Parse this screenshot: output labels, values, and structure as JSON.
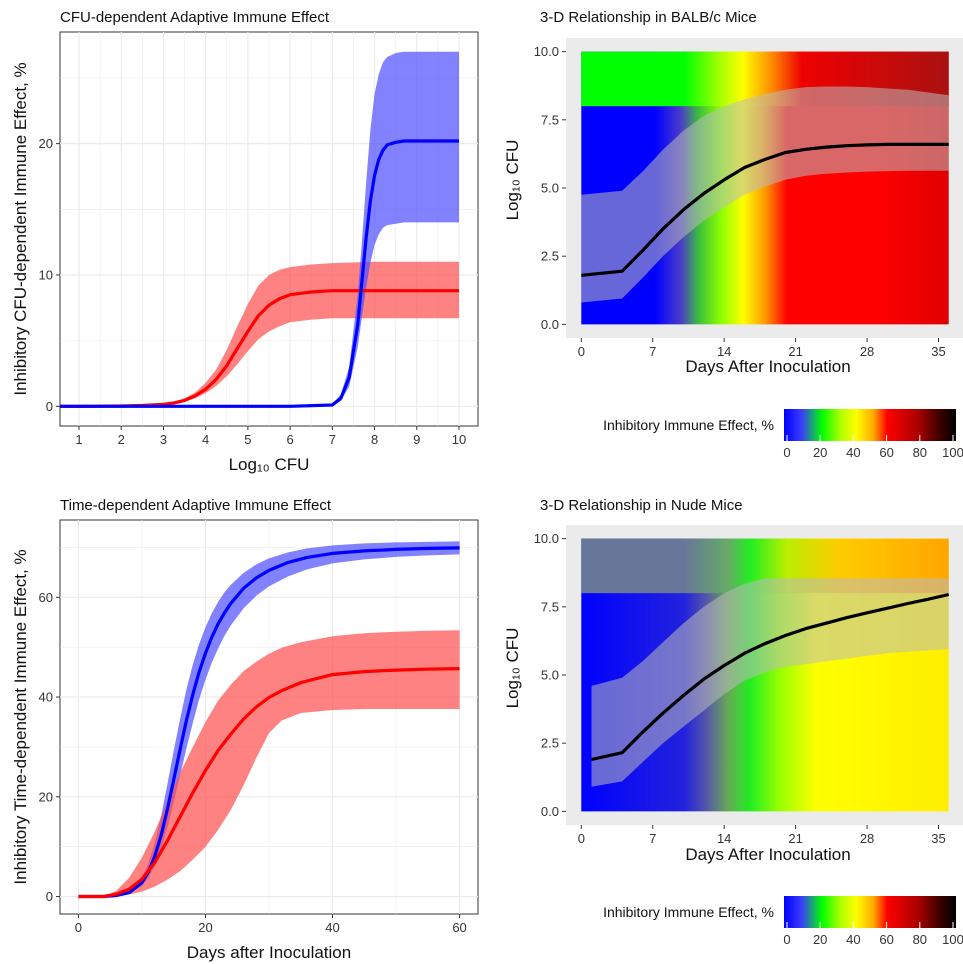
{
  "chart_data": [
    {
      "type": "line",
      "title": "CFU-dependent Adaptive Immune Effect",
      "xlabel": "Log₁₀ CFU",
      "ylabel": "Inhibitory CFU-dependent Immune Effect, %",
      "xlim": [
        0.55,
        10.45
      ],
      "ylim": [
        -1.5,
        28.5
      ],
      "xticks": [
        1,
        2,
        3,
        4,
        5,
        6,
        7,
        8,
        9,
        10
      ],
      "yticks": [
        0,
        10,
        20
      ],
      "grid": true,
      "series": [
        {
          "color": "#ff0000",
          "band_color": "#ff4d4d",
          "x": [
            0.55,
            1,
            2,
            2.5,
            3,
            3.25,
            3.5,
            3.75,
            4,
            4.25,
            4.5,
            4.75,
            5,
            5.25,
            5.5,
            5.75,
            6,
            6.5,
            7,
            8,
            9,
            10
          ],
          "y": [
            0,
            0,
            0.02,
            0.06,
            0.15,
            0.26,
            0.45,
            0.8,
            1.3,
            2.05,
            3.1,
            4.4,
            5.7,
            6.9,
            7.7,
            8.2,
            8.5,
            8.7,
            8.8,
            8.8,
            8.8,
            8.8
          ],
          "lower": [
            0,
            0,
            0.02,
            0.05,
            0.12,
            0.2,
            0.35,
            0.6,
            1.0,
            1.55,
            2.3,
            3.2,
            4.2,
            5.1,
            5.7,
            6.1,
            6.4,
            6.6,
            6.7,
            6.7,
            6.7,
            6.7
          ],
          "upper": [
            0,
            0,
            0.03,
            0.08,
            0.2,
            0.35,
            0.6,
            1.05,
            1.8,
            2.8,
            4.3,
            6.1,
            7.8,
            9.2,
            10.0,
            10.4,
            10.6,
            10.8,
            10.9,
            11.0,
            11.0,
            11.0
          ]
        },
        {
          "color": "#0000ff",
          "band_color": "#4d4dff",
          "x": [
            0.55,
            2,
            4,
            6,
            7,
            7.2,
            7.4,
            7.6,
            7.7,
            7.8,
            7.9,
            8.0,
            8.1,
            8.2,
            8.3,
            8.5,
            8.7,
            9,
            10
          ],
          "y": [
            0,
            0,
            0,
            0,
            0.1,
            0.6,
            2.2,
            6.2,
            9.5,
            12.8,
            15.6,
            17.6,
            18.8,
            19.5,
            19.9,
            20.1,
            20.2,
            20.2,
            20.2
          ],
          "lower": [
            0,
            0,
            0,
            0,
            0.05,
            0.4,
            1.5,
            4.5,
            6.8,
            9.0,
            10.9,
            12.3,
            13.1,
            13.6,
            13.8,
            13.9,
            14.0,
            14.0,
            14.0
          ],
          "upper": [
            0,
            0,
            0,
            0,
            0.2,
            0.9,
            3.0,
            8.5,
            12.5,
            17.0,
            21.0,
            23.8,
            25.3,
            26.2,
            26.6,
            26.9,
            27.0,
            27.0,
            27.0
          ]
        }
      ]
    },
    {
      "type": "heatmap",
      "title": "3-D Relationship in BALB/c Mice",
      "xlabel": "Days After Inoculation",
      "ylabel": "Log₁₀ CFU",
      "xlim": [
        -1.5,
        37.5
      ],
      "ylim": [
        -0.5,
        10.5
      ],
      "xticks": [
        0,
        7,
        14,
        21,
        28,
        35
      ],
      "yticks": [
        "0.0",
        "2.5",
        "5.0",
        "7.5",
        "10.0"
      ],
      "colorbar": {
        "label": "Inhibitory Immune Effect, %",
        "ticks": [
          0,
          20,
          40,
          60,
          80,
          100
        ]
      },
      "curve": {
        "x": [
          0,
          4,
          6,
          8,
          10,
          12,
          14,
          16,
          18,
          20,
          22,
          24,
          26,
          28,
          30,
          32,
          34,
          36
        ],
        "y": [
          1.8,
          1.95,
          2.7,
          3.5,
          4.2,
          4.8,
          5.3,
          5.75,
          6.05,
          6.3,
          6.42,
          6.5,
          6.55,
          6.58,
          6.6,
          6.6,
          6.6,
          6.6
        ],
        "lower": [
          0.8,
          0.95,
          1.7,
          2.5,
          3.2,
          3.8,
          4.3,
          4.75,
          5.05,
          5.3,
          5.45,
          5.52,
          5.57,
          5.6,
          5.62,
          5.63,
          5.63,
          5.63
        ],
        "upper": [
          4.75,
          4.9,
          5.6,
          6.4,
          7.1,
          7.65,
          8.0,
          8.25,
          8.45,
          8.6,
          8.7,
          8.72,
          8.72,
          8.7,
          8.65,
          8.6,
          8.5,
          8.4
        ]
      }
    },
    {
      "type": "line",
      "title": "Time-dependent Adaptive Immune Effect",
      "xlabel": "Days after Inoculation",
      "ylabel": "Inhibitory Time-dependent Immune Effect, %",
      "xlim": [
        -2.9,
        62.9
      ],
      "ylim": [
        -3.5,
        75.5
      ],
      "xticks": [
        0,
        20,
        40,
        60
      ],
      "yticks": [
        0,
        20,
        40,
        60
      ],
      "grid": true,
      "series": [
        {
          "color": "#0000ff",
          "band_color": "#4d4dff",
          "x": [
            0,
            4,
            6,
            8,
            10,
            11,
            12,
            13,
            14,
            15,
            16,
            17,
            18,
            19,
            20,
            21,
            22,
            23,
            24,
            26,
            28,
            30,
            33,
            36,
            40,
            45,
            50,
            55,
            60
          ],
          "y": [
            0,
            0,
            0.2,
            0.8,
            2.8,
            4.9,
            8.0,
            12.2,
            17.5,
            23.4,
            29.5,
            35.3,
            40.5,
            45.0,
            48.8,
            52.0,
            54.7,
            56.9,
            58.8,
            61.8,
            63.9,
            65.4,
            67.0,
            68.0,
            68.8,
            69.3,
            69.6,
            69.8,
            69.9
          ],
          "lower": [
            0,
            0,
            0.15,
            0.6,
            2.1,
            3.7,
            6.1,
            9.5,
            13.8,
            18.8,
            24.3,
            29.7,
            34.8,
            39.5,
            43.5,
            46.9,
            49.8,
            52.3,
            54.4,
            57.8,
            60.3,
            62.2,
            64.2,
            65.6,
            66.8,
            67.6,
            68.1,
            68.4,
            68.6
          ],
          "upper": [
            0,
            0,
            0.3,
            1.2,
            3.8,
            6.6,
            10.7,
            16.0,
            22.5,
            29.2,
            35.6,
            41.5,
            46.5,
            50.6,
            54.0,
            56.8,
            59.1,
            61.0,
            62.5,
            64.9,
            66.6,
            67.8,
            69.0,
            69.8,
            70.4,
            70.8,
            71.0,
            71.1,
            71.2
          ]
        },
        {
          "color": "#ff0000",
          "band_color": "#ff4d4d",
          "x": [
            0,
            4,
            6,
            8,
            10,
            12,
            14,
            16,
            18,
            20,
            22,
            24,
            26,
            28,
            30,
            32,
            35,
            40,
            45,
            50,
            55,
            60
          ],
          "y": [
            0,
            0,
            0.5,
            1.5,
            3.5,
            6.8,
            11.2,
            16.0,
            20.8,
            25.3,
            29.3,
            32.6,
            35.6,
            38.0,
            39.9,
            41.3,
            42.9,
            44.5,
            45.1,
            45.4,
            45.6,
            45.7
          ],
          "lower": [
            0,
            0,
            0.1,
            0.4,
            1.0,
            2.0,
            3.4,
            5.1,
            7.4,
            10.0,
            13.4,
            17.4,
            22.3,
            27.8,
            32.8,
            35.3,
            36.8,
            37.4,
            37.6,
            37.6,
            37.6,
            37.6
          ],
          "upper": [
            0,
            0,
            1.2,
            3.8,
            7.8,
            13.0,
            19.0,
            24.8,
            30.0,
            35.0,
            39.3,
            42.5,
            45.2,
            47.1,
            48.7,
            49.9,
            51.0,
            52.2,
            52.8,
            53.1,
            53.3,
            53.4
          ]
        }
      ]
    },
    {
      "type": "heatmap",
      "title": "3-D Relationship in Nude Mice",
      "xlabel": "Days After Inoculation",
      "ylabel": "Log₁₀ CFU",
      "xlim": [
        -1.5,
        37.5
      ],
      "ylim": [
        -0.5,
        10.5
      ],
      "xticks": [
        0,
        7,
        14,
        21,
        28,
        35
      ],
      "yticks": [
        "0.0",
        "2.5",
        "5.0",
        "7.5",
        "10.0"
      ],
      "colorbar": {
        "label": "Inhibitory Immune Effect, %",
        "ticks": [
          0,
          20,
          40,
          60,
          80,
          100
        ]
      },
      "curve": {
        "x": [
          1,
          4,
          6,
          8,
          10,
          12,
          14,
          16,
          18,
          20,
          22,
          24,
          26,
          28,
          30,
          32,
          34,
          36
        ],
        "y": [
          1.9,
          2.15,
          2.9,
          3.6,
          4.25,
          4.85,
          5.35,
          5.8,
          6.15,
          6.45,
          6.7,
          6.9,
          7.1,
          7.28,
          7.45,
          7.62,
          7.78,
          7.95
        ],
        "lower": [
          0.9,
          1.1,
          1.8,
          2.5,
          3.1,
          3.7,
          4.3,
          4.8,
          5.1,
          5.3,
          5.4,
          5.5,
          5.6,
          5.7,
          5.8,
          5.85,
          5.9,
          5.95
        ],
        "upper": [
          4.6,
          4.9,
          5.5,
          6.2,
          6.9,
          7.5,
          8.0,
          8.35,
          8.55,
          8.55,
          8.55,
          8.55,
          8.55,
          8.55,
          8.55,
          8.55,
          8.55,
          8.55
        ]
      }
    }
  ],
  "colors": {
    "panel_bg": "#ebebeb",
    "grid": "#ffffff",
    "red": "#ff0000",
    "blue": "#0000ff"
  }
}
